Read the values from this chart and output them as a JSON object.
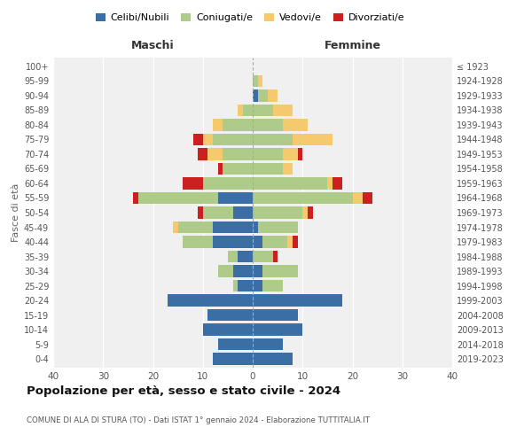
{
  "age_groups": [
    "0-4",
    "5-9",
    "10-14",
    "15-19",
    "20-24",
    "25-29",
    "30-34",
    "35-39",
    "40-44",
    "45-49",
    "50-54",
    "55-59",
    "60-64",
    "65-69",
    "70-74",
    "75-79",
    "80-84",
    "85-89",
    "90-94",
    "95-99",
    "100+"
  ],
  "birth_years": [
    "2019-2023",
    "2014-2018",
    "2009-2013",
    "2004-2008",
    "1999-2003",
    "1994-1998",
    "1989-1993",
    "1984-1988",
    "1979-1983",
    "1974-1978",
    "1969-1973",
    "1964-1968",
    "1959-1963",
    "1954-1958",
    "1949-1953",
    "1944-1948",
    "1939-1943",
    "1934-1938",
    "1929-1933",
    "1924-1928",
    "≤ 1923"
  ],
  "males": {
    "celibi": [
      8,
      7,
      10,
      9,
      17,
      3,
      4,
      3,
      8,
      8,
      4,
      7,
      0,
      0,
      0,
      0,
      0,
      0,
      0,
      0,
      0
    ],
    "coniugati": [
      0,
      0,
      0,
      0,
      0,
      1,
      3,
      2,
      6,
      7,
      6,
      16,
      10,
      6,
      6,
      8,
      6,
      2,
      0,
      0,
      0
    ],
    "vedovi": [
      0,
      0,
      0,
      0,
      0,
      0,
      0,
      0,
      0,
      1,
      0,
      0,
      0,
      0,
      3,
      2,
      2,
      1,
      0,
      0,
      0
    ],
    "divorziati": [
      0,
      0,
      0,
      0,
      0,
      0,
      0,
      0,
      0,
      0,
      1,
      1,
      4,
      1,
      2,
      2,
      0,
      0,
      0,
      0,
      0
    ]
  },
  "females": {
    "nubili": [
      8,
      6,
      10,
      9,
      18,
      2,
      2,
      0,
      2,
      1,
      0,
      0,
      0,
      0,
      0,
      0,
      0,
      0,
      1,
      0,
      0
    ],
    "coniugate": [
      0,
      0,
      0,
      0,
      0,
      4,
      7,
      4,
      5,
      8,
      10,
      20,
      15,
      6,
      6,
      8,
      6,
      4,
      2,
      1,
      0
    ],
    "vedove": [
      0,
      0,
      0,
      0,
      0,
      0,
      0,
      0,
      1,
      0,
      1,
      2,
      1,
      2,
      3,
      8,
      5,
      4,
      2,
      1,
      0
    ],
    "divorziate": [
      0,
      0,
      0,
      0,
      0,
      0,
      0,
      1,
      1,
      0,
      1,
      2,
      2,
      0,
      1,
      0,
      0,
      0,
      0,
      0,
      0
    ]
  },
  "colors": {
    "celibi": "#3A6EA5",
    "coniugati": "#AECB8A",
    "vedovi": "#F5C96D",
    "divorziati": "#CC2020"
  },
  "xlim": 40,
  "title": "Popolazione per età, sesso e stato civile - 2024",
  "subtitle": "COMUNE DI ALA DI STURA (TO) - Dati ISTAT 1° gennaio 2024 - Elaborazione TUTTITALIA.IT",
  "ylabel_left": "Fasce di età",
  "xlabel_left": "Maschi",
  "xlabel_right": "Femmine",
  "legend_labels": [
    "Celibi/Nubili",
    "Coniugati/e",
    "Vedovi/e",
    "Divorziati/e"
  ],
  "background_color": "#ffffff",
  "plot_bg_color": "#f0f0f0"
}
